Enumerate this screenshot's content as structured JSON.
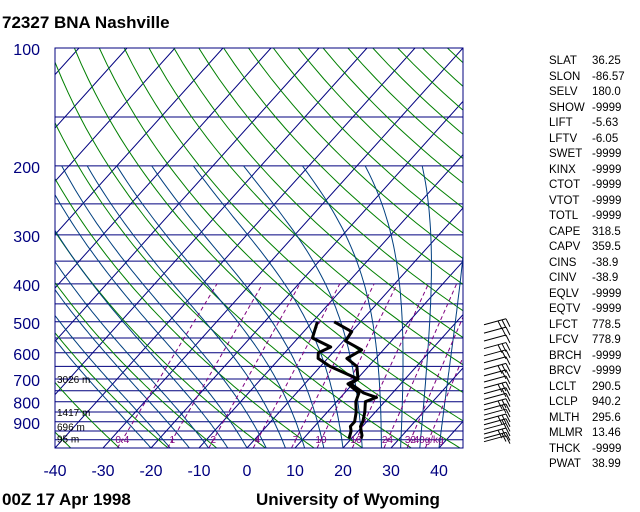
{
  "title": "72327 BNA Nashville",
  "footer": {
    "time": "00Z 17 Apr 1998",
    "source": "University of Wyoming"
  },
  "colors": {
    "pressure_axis": "#00007f",
    "temperature_axis": "#00007f",
    "isobar": "#00007f",
    "isotherm": "#00007f",
    "dry_adiabat": "#007f00",
    "moist_adiabat": "#003f7f",
    "mixing_ratio": "#7f007f",
    "profile": "#000000"
  },
  "chart_data": {
    "type": "skew-t",
    "title": "72327 BNA Nashville",
    "pressure_levels": [
      100,
      200,
      300,
      400,
      500,
      600,
      700,
      800,
      900
    ],
    "temperature_ticks": [
      -40,
      -30,
      -20,
      -10,
      0,
      10,
      20,
      30,
      40
    ],
    "height_labels": [
      {
        "label": "3026 m",
        "p": 700
      },
      {
        "label": "1417 m",
        "p": 850
      },
      {
        "label": "696 m",
        "p": 925
      },
      {
        "label": "95 m",
        "p": 994
      }
    ],
    "mixing_ratio_labels": [
      "0.4",
      "1",
      "2",
      "4",
      "7",
      "10",
      "16",
      "24",
      "32",
      "40g/kg"
    ],
    "mixing_ratio_values": [
      0.4,
      1,
      2,
      4,
      7,
      10,
      16,
      24,
      32,
      40
    ],
    "temperature_profile": [
      {
        "p": 994,
        "t": 22
      },
      {
        "p": 975,
        "t": 21.6
      },
      {
        "p": 950,
        "t": 20.6
      },
      {
        "p": 925,
        "t": 19.6
      },
      {
        "p": 900,
        "t": 19.2
      },
      {
        "p": 850,
        "t": 17.8
      },
      {
        "p": 800,
        "t": 16
      },
      {
        "p": 780,
        "t": 17.5
      },
      {
        "p": 760,
        "t": 14
      },
      {
        "p": 720,
        "t": 9.6
      },
      {
        "p": 700,
        "t": 10.2
      },
      {
        "p": 650,
        "t": 7.6
      },
      {
        "p": 620,
        "t": 4
      },
      {
        "p": 590,
        "t": 5.5
      },
      {
        "p": 560,
        "t": 0.5
      },
      {
        "p": 530,
        "t": 0
      },
      {
        "p": 500,
        "t": -5.5
      }
    ],
    "dewpoint_profile": [
      {
        "p": 994,
        "t": 19.5
      },
      {
        "p": 950,
        "t": 18.5
      },
      {
        "p": 925,
        "t": 17.5
      },
      {
        "p": 900,
        "t": 17.5
      },
      {
        "p": 850,
        "t": 16
      },
      {
        "p": 800,
        "t": 14
      },
      {
        "p": 760,
        "t": 13
      },
      {
        "p": 720,
        "t": 9
      },
      {
        "p": 700,
        "t": 10.2
      },
      {
        "p": 650,
        "t": 2
      },
      {
        "p": 620,
        "t": -2
      },
      {
        "p": 600,
        "t": -3
      },
      {
        "p": 580,
        "t": -1.5
      },
      {
        "p": 550,
        "t": -7
      },
      {
        "p": 500,
        "t": -9
      }
    ],
    "wind_barb_pressures": [
      994,
      975,
      950,
      925,
      900,
      875,
      850,
      825,
      800,
      775,
      750,
      725,
      700,
      675,
      650,
      625,
      600,
      575,
      550,
      525,
      500
    ]
  },
  "indices": [
    {
      "name": "SLAT",
      "value": "36.25"
    },
    {
      "name": "SLON",
      "value": "-86.57"
    },
    {
      "name": "SELV",
      "value": "180.0"
    },
    {
      "name": "SHOW",
      "value": "-9999"
    },
    {
      "name": "LIFT",
      "value": "-5.63"
    },
    {
      "name": "LFTV",
      "value": "-6.05"
    },
    {
      "name": "SWET",
      "value": "-9999"
    },
    {
      "name": "KINX",
      "value": "-9999"
    },
    {
      "name": "CTOT",
      "value": "-9999"
    },
    {
      "name": "VTOT",
      "value": "-9999"
    },
    {
      "name": "TOTL",
      "value": "-9999"
    },
    {
      "name": "CAPE",
      "value": "318.5"
    },
    {
      "name": "CAPV",
      "value": "359.5"
    },
    {
      "name": "CINS",
      "value": "-38.9"
    },
    {
      "name": "CINV",
      "value": "-38.9"
    },
    {
      "name": "EQLV",
      "value": "-9999"
    },
    {
      "name": "EQTV",
      "value": "-9999"
    },
    {
      "name": "LFCT",
      "value": "778.5"
    },
    {
      "name": "LFCV",
      "value": "778.9"
    },
    {
      "name": "BRCH",
      "value": "-9999"
    },
    {
      "name": "BRCV",
      "value": "-9999"
    },
    {
      "name": "LCLT",
      "value": "290.5"
    },
    {
      "name": "LCLP",
      "value": "940.2"
    },
    {
      "name": "MLTH",
      "value": "295.6"
    },
    {
      "name": "MLMR",
      "value": "13.46"
    },
    {
      "name": "THCK",
      "value": "-9999"
    },
    {
      "name": "PWAT",
      "value": "38.99"
    }
  ]
}
